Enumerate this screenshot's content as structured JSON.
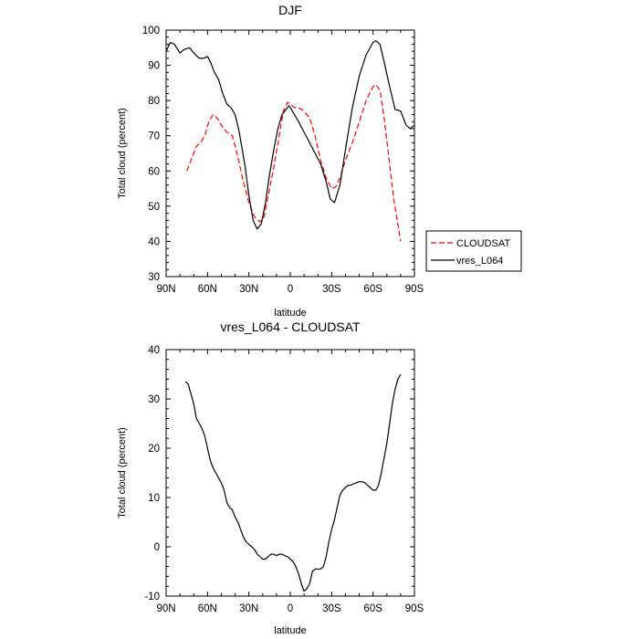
{
  "chart_data": [
    {
      "type": "line",
      "title": "DJF",
      "xlabel": "latitude",
      "ylabel": "Total cloud (percent)",
      "xlim": [
        90,
        -90
      ],
      "ylim": [
        30,
        100
      ],
      "x_ticks": [
        90,
        60,
        30,
        0,
        -30,
        -60,
        -90
      ],
      "x_tick_labels": [
        "90N",
        "60N",
        "30N",
        "0",
        "30S",
        "60S",
        "90S"
      ],
      "y_ticks": [
        30,
        40,
        50,
        60,
        70,
        80,
        90,
        100
      ],
      "y_tick_labels": [
        "30",
        "40",
        "50",
        "60",
        "70",
        "80",
        "90",
        "100"
      ],
      "legend_position": "right",
      "series": [
        {
          "name": "CLOUDSAT",
          "color": "#ff0000",
          "dash": "dashed",
          "x": [
            75,
            72,
            68,
            65,
            62,
            59,
            56,
            53,
            50,
            46,
            42,
            38,
            34,
            30,
            26,
            22,
            19,
            16,
            12,
            8,
            5,
            2,
            0,
            -3,
            -6,
            -10,
            -14,
            -18,
            -22,
            -26,
            -30,
            -33,
            -36,
            -40,
            -45,
            -50,
            -55,
            -60,
            -62,
            -65,
            -68,
            -72,
            -75,
            -80
          ],
          "y": [
            60,
            63,
            67,
            68,
            70,
            74,
            76,
            75,
            73,
            71,
            70,
            64,
            57,
            51,
            47,
            45.5,
            47,
            53,
            61,
            70,
            77,
            79.5,
            79,
            78,
            78,
            77,
            75,
            70,
            63,
            58,
            55,
            55.5,
            58,
            63,
            68,
            74,
            80,
            84,
            84.5,
            83,
            75,
            62,
            52,
            40
          ]
        },
        {
          "name": "vres_L064",
          "color": "#000000",
          "dash": "solid",
          "x": [
            90,
            87,
            84,
            80,
            77,
            73,
            70,
            66,
            63,
            60,
            58,
            55,
            52,
            49,
            46,
            43,
            40,
            37,
            33,
            30,
            27,
            24,
            21,
            18,
            15,
            12,
            9,
            6,
            3,
            1,
            0,
            -3,
            -6,
            -10,
            -14,
            -18,
            -22,
            -26,
            -29,
            -32,
            -36,
            -40,
            -45,
            -50,
            -55,
            -60,
            -62,
            -65,
            -68,
            -72,
            -76,
            -80,
            -84,
            -87,
            -90
          ],
          "y": [
            94,
            96.5,
            96,
            93.5,
            94.5,
            95,
            93.5,
            92,
            92,
            92.5,
            91,
            88,
            86,
            82,
            79,
            78,
            76,
            71,
            62,
            53,
            46,
            43.5,
            45,
            51,
            59,
            66,
            72,
            76,
            77.5,
            78.5,
            78,
            76,
            74,
            71,
            68,
            65,
            62,
            57,
            52,
            51,
            56,
            66,
            78,
            87,
            93,
            96.5,
            97,
            96,
            91,
            84,
            77.5,
            77,
            73,
            72,
            73
          ]
        }
      ]
    },
    {
      "type": "line",
      "title": "vres_L064 - CLOUDSAT",
      "xlabel": "latitude",
      "ylabel": "Total cloud (percent)",
      "xlim": [
        90,
        -90
      ],
      "ylim": [
        -10,
        40
      ],
      "x_ticks": [
        90,
        60,
        30,
        0,
        -30,
        -60,
        -90
      ],
      "x_tick_labels": [
        "90N",
        "60N",
        "30N",
        "0",
        "30S",
        "60S",
        "90S"
      ],
      "y_ticks": [
        -10,
        0,
        10,
        20,
        30,
        40
      ],
      "y_tick_labels": [
        "-10",
        "0",
        "10",
        "20",
        "30",
        "40"
      ],
      "series": [
        {
          "name": "vres_L064 - CLOUDSAT",
          "color": "#000000",
          "dash": "solid",
          "x": [
            76,
            74,
            72,
            70,
            68,
            66,
            64,
            62,
            60,
            58,
            56,
            54,
            52,
            50,
            48,
            46,
            44,
            42,
            40,
            38,
            36,
            34,
            32,
            30,
            28,
            26,
            24,
            22,
            20,
            18,
            16,
            14,
            12,
            10,
            8,
            6,
            4,
            2,
            0,
            -2,
            -4,
            -6,
            -8,
            -10,
            -12,
            -14,
            -16,
            -18,
            -20,
            -22,
            -24,
            -26,
            -28,
            -30,
            -32,
            -34,
            -36,
            -38,
            -40,
            -42,
            -44,
            -46,
            -48,
            -50,
            -52,
            -54,
            -56,
            -58,
            -60,
            -62,
            -64,
            -66,
            -68,
            -70,
            -72,
            -74,
            -76,
            -78,
            -80
          ],
          "y": [
            33.5,
            33,
            31,
            29,
            26,
            25,
            24,
            22.5,
            20,
            17.5,
            16,
            15,
            14,
            13,
            11.5,
            9,
            8,
            7.5,
            6,
            5,
            3.5,
            2,
            1,
            0.5,
            0,
            -0.5,
            -1.5,
            -2,
            -2.5,
            -2.5,
            -2,
            -1.5,
            -1.5,
            -1.8,
            -1.5,
            -1.5,
            -1.8,
            -2,
            -2.5,
            -3,
            -4,
            -5.5,
            -7.5,
            -9,
            -8.5,
            -7.5,
            -5,
            -4.5,
            -4.5,
            -4.5,
            -4,
            -2,
            1,
            3.5,
            5.5,
            8,
            10.5,
            11.5,
            12,
            12.5,
            12.5,
            12.8,
            13,
            13.2,
            13.2,
            13,
            12.5,
            12,
            11.5,
            11.5,
            12.5,
            15,
            18,
            21,
            25,
            29,
            32,
            34,
            35
          ]
        }
      ]
    }
  ]
}
